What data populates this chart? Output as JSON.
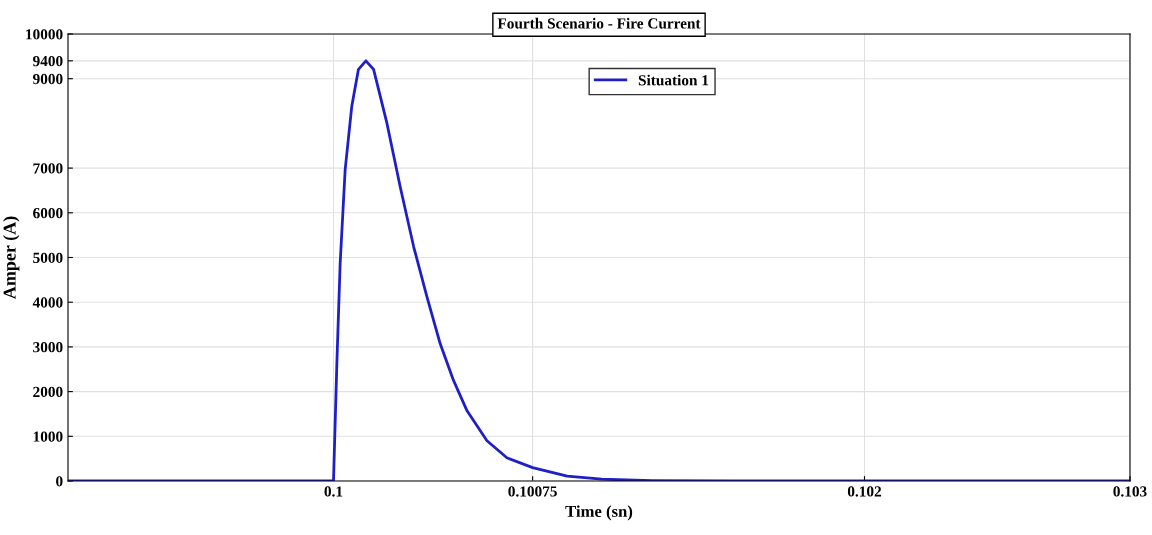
{
  "chart_data": {
    "type": "line",
    "title": "Fourth Scenario - Fire Current",
    "xlabel": "Time (sn)",
    "ylabel": "Amper (A)",
    "xlim": [
      0.099,
      0.103
    ],
    "xticks": [
      0.1,
      0.10075,
      0.102,
      0.103
    ],
    "ylim": [
      0,
      10000
    ],
    "yticks": [
      0,
      1000,
      2000,
      3000,
      4000,
      5000,
      6000,
      7000,
      9000,
      9400,
      10000
    ],
    "grid": true,
    "legend": "top",
    "marker": "none",
    "line_style": "solid",
    "series": [
      {
        "name": "Situation 1",
        "color": "#1f1fc8",
        "x": [
          0.099,
          0.1,
          0.1000126,
          0.1000251,
          0.100044,
          0.100069,
          0.100094,
          0.100122,
          0.100151,
          0.100201,
          0.100251,
          0.100302,
          0.100352,
          0.100402,
          0.100452,
          0.100503,
          0.100578,
          0.100653,
          0.10075,
          0.10088,
          0.10101,
          0.1012,
          0.1015,
          0.103
        ],
        "values": [
          0,
          0,
          2620,
          4870,
          6970,
          8390,
          9210,
          9400,
          9210,
          8010,
          6590,
          5240,
          4120,
          3070,
          2250,
          1570,
          900,
          520,
          300,
          110,
          40,
          10,
          0,
          0
        ]
      }
    ]
  }
}
